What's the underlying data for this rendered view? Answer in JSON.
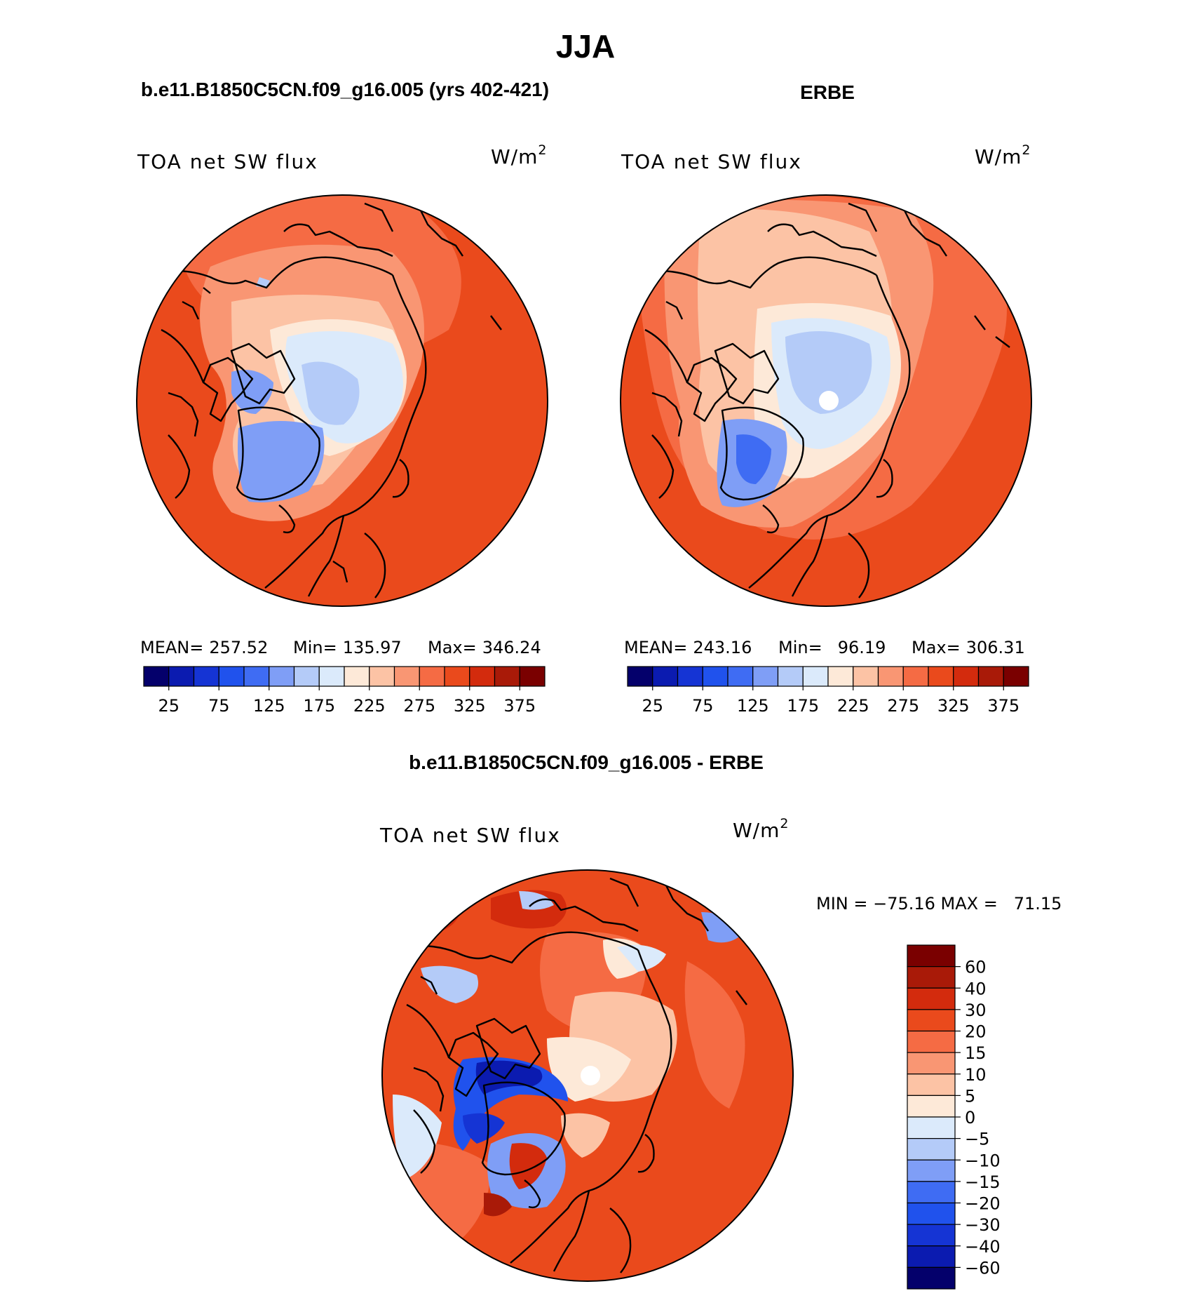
{
  "title": "JJA",
  "chart_data": [
    {
      "type": "heatmap",
      "projection": "north-polar-stereographic",
      "case_title": "b.e11.B1850C5CN.f09_g16.005 (yrs 402-421)",
      "variable": "TOA net SW flux",
      "units": "W/m",
      "units_exp": "2",
      "stats": [
        {
          "label": "MEAN=",
          "value": "257.52"
        },
        {
          "label": "Min=",
          "value": "135.97"
        },
        {
          "label": "Max=",
          "value": "346.24"
        }
      ],
      "colorbar": {
        "orientation": "horizontal",
        "levels": [
          0,
          25,
          50,
          75,
          100,
          125,
          150,
          175,
          200,
          225,
          250,
          275,
          300,
          325,
          350,
          375
        ],
        "tick_labels": [
          "25",
          "75",
          "125",
          "175",
          "225",
          "275",
          "325",
          "375"
        ]
      }
    },
    {
      "type": "heatmap",
      "projection": "north-polar-stereographic",
      "case_title": "ERBE",
      "variable": "TOA net SW flux",
      "units": "W/m",
      "units_exp": "2",
      "stats": [
        {
          "label": "MEAN=",
          "value": "243.16"
        },
        {
          "label": "Min=",
          "value": "96.19"
        },
        {
          "label": "Max=",
          "value": "306.31"
        }
      ],
      "colorbar": {
        "orientation": "horizontal",
        "levels": [
          0,
          25,
          50,
          75,
          100,
          125,
          150,
          175,
          200,
          225,
          250,
          275,
          300,
          325,
          350,
          375
        ],
        "tick_labels": [
          "25",
          "75",
          "125",
          "175",
          "225",
          "275",
          "325",
          "375"
        ]
      }
    },
    {
      "type": "heatmap",
      "projection": "north-polar-stereographic",
      "case_title": "b.e11.B1850C5CN.f09_g16.005 - ERBE",
      "variable": "TOA net SW flux",
      "units": "W/m",
      "units_exp": "2",
      "minmax_text": "MIN = −75.16 MAX =   71.15",
      "min": -75.16,
      "max": 71.15,
      "colorbar": {
        "orientation": "vertical",
        "tick_labels": [
          "60",
          "40",
          "30",
          "20",
          "15",
          "10",
          "5",
          "0",
          "−5",
          "−10",
          "−15",
          "−20",
          "−30",
          "−40",
          "−60"
        ]
      }
    }
  ],
  "colors": {
    "seq": [
      "#04006b",
      "#0b1bb0",
      "#1534d4",
      "#2052ed",
      "#3f6cf3",
      "#7f9ef6",
      "#b4cbf8",
      "#dbeafb",
      "#fde9d8",
      "#fcc3a5",
      "#f99673",
      "#f56b44",
      "#ea4a1c",
      "#d32b0d",
      "#a91a08",
      "#7a0000"
    ],
    "diff": [
      "#7a0000",
      "#a91a08",
      "#d32b0d",
      "#ea4a1c",
      "#f56b44",
      "#f99673",
      "#fcc3a5",
      "#fde9d8",
      "#dbeafb",
      "#b4cbf8",
      "#7f9ef6",
      "#3f6cf3",
      "#2052ed",
      "#1534d4",
      "#0b1bb0",
      "#04006b"
    ]
  }
}
